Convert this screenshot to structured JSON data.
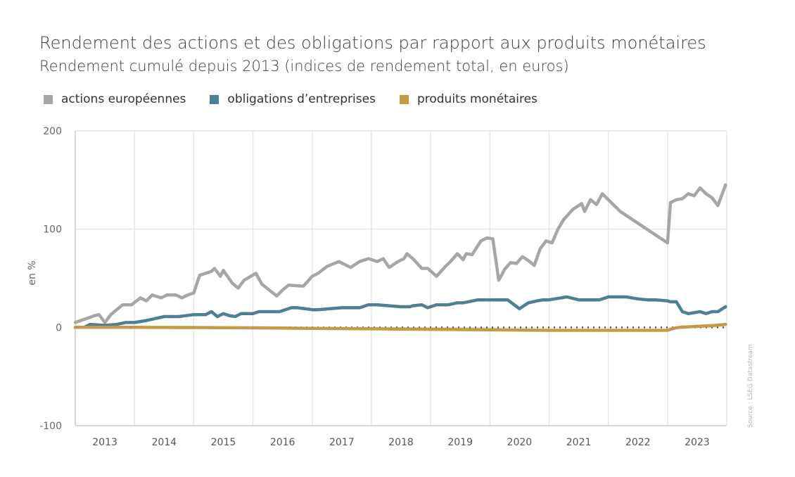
{
  "colors": {
    "actions": "#a9a5a4",
    "obligations": "#4d7f95",
    "monetaires": "#c39b48",
    "grid": "#e6e6e6",
    "text": "#3d3d3d"
  },
  "source": "Source : LSEG Datastream",
  "chart_data": {
    "type": "line",
    "title": "Rendement des actions et des obligations par rapport aux produits monétaires",
    "subtitle": "Rendement cumulé depuis 2013 (indices de rendement total, en euros)",
    "xlabel": "",
    "ylabel": "en %",
    "ylim": [
      -100,
      200
    ],
    "xlim": [
      2013,
      2024
    ],
    "yticks": [
      "200",
      "100",
      "0",
      "-100"
    ],
    "ytick_values": [
      200,
      100,
      0,
      -100
    ],
    "xticks": [
      "2013",
      "2014",
      "2015",
      "2016",
      "2017",
      "2018",
      "2019",
      "2020",
      "2021",
      "2022",
      "2023"
    ],
    "xtick_values": [
      2013,
      2014,
      2015,
      2016,
      2017,
      2018,
      2019,
      2020,
      2021,
      2022,
      2023
    ],
    "reference_line": 0,
    "grid": true,
    "legend": "top-left",
    "series": [
      {
        "name": "actions européennes",
        "key": "actions",
        "x": [
          2013.0,
          2013.33,
          2013.4,
          2013.5,
          2013.6,
          2013.8,
          2013.95,
          2014.1,
          2014.2,
          2014.3,
          2014.45,
          2014.55,
          2014.7,
          2014.8,
          2014.9,
          2015.0,
          2015.1,
          2015.2,
          2015.3,
          2015.35,
          2015.45,
          2015.5,
          2015.65,
          2015.75,
          2015.85,
          2016.05,
          2016.15,
          2016.4,
          2016.5,
          2016.6,
          2016.85,
          2017.0,
          2017.1,
          2017.25,
          2017.45,
          2017.65,
          2017.8,
          2017.95,
          2018.1,
          2018.2,
          2018.3,
          2018.45,
          2018.55,
          2018.6,
          2018.7,
          2018.85,
          2018.95,
          2019.1,
          2019.25,
          2019.35,
          2019.45,
          2019.55,
          2019.6,
          2019.7,
          2019.85,
          2019.95,
          2020.05,
          2020.15,
          2020.25,
          2020.35,
          2020.45,
          2020.55,
          2020.65,
          2020.75,
          2020.85,
          2020.95,
          2021.05,
          2021.15,
          2021.25,
          2021.4,
          2021.55,
          2021.6,
          2021.7,
          2021.8,
          2021.9,
          2022.0,
          2022.2,
          2022.6,
          2023.0,
          2023.05,
          2023.15,
          2023.25,
          2023.35,
          2023.45,
          2023.55,
          2023.65,
          2023.75,
          2023.85,
          2023.98
        ],
        "values": [
          5,
          12,
          13,
          5,
          13,
          23,
          23,
          30,
          27,
          33,
          30,
          33,
          33,
          30,
          33,
          35,
          53,
          55,
          57,
          60,
          52,
          58,
          45,
          40,
          48,
          55,
          44,
          32,
          38,
          43,
          42,
          52,
          55,
          62,
          67,
          61,
          67,
          70,
          67,
          70,
          61,
          67,
          70,
          75,
          70,
          60,
          60,
          52,
          62,
          68,
          75,
          69,
          75,
          74,
          88,
          91,
          90,
          48,
          59,
          66,
          65,
          72,
          68,
          63,
          80,
          88,
          86,
          100,
          110,
          120,
          126,
          118,
          130,
          125,
          136,
          130,
          118,
          102,
          86,
          127,
          130,
          131,
          136,
          134,
          142,
          136,
          132,
          124,
          145
        ]
      },
      {
        "name": "obligations d’entreprises",
        "key": "obligations",
        "x": [
          2013.0,
          2013.15,
          2013.25,
          2013.5,
          2013.7,
          2013.85,
          2014.0,
          2014.2,
          2014.35,
          2014.5,
          2014.75,
          2015.0,
          2015.05,
          2015.1,
          2015.2,
          2015.3,
          2015.4,
          2015.5,
          2015.6,
          2015.7,
          2015.8,
          2015.95,
          2016.0,
          2016.1,
          2016.3,
          2016.45,
          2016.65,
          2016.75,
          2017.0,
          2017.1,
          2017.3,
          2017.5,
          2017.7,
          2017.8,
          2017.95,
          2018.1,
          2018.3,
          2018.5,
          2018.65,
          2018.7,
          2018.85,
          2018.95,
          2019.1,
          2019.3,
          2019.45,
          2019.55,
          2019.8,
          2019.95,
          2020.1,
          2020.15,
          2020.3,
          2020.5,
          2020.65,
          2020.8,
          2020.9,
          2021.0,
          2021.3,
          2021.5,
          2021.6,
          2021.85,
          2022.0,
          2022.3,
          2022.5,
          2022.65,
          2022.8,
          2023.0,
          2023.05,
          2023.15,
          2023.25,
          2023.35,
          2023.45,
          2023.55,
          2023.65,
          2023.75,
          2023.85,
          2023.98
        ],
        "values": [
          0,
          0,
          3,
          2,
          3,
          5,
          5,
          7,
          9,
          11,
          11,
          13,
          13,
          13,
          13,
          16,
          11,
          14,
          12,
          11,
          14,
          14,
          14,
          16,
          16,
          16,
          20,
          20,
          18,
          18,
          19,
          20,
          20,
          20,
          23,
          23,
          22,
          21,
          21,
          22,
          23,
          20,
          23,
          23,
          25,
          25,
          28,
          28,
          28,
          28,
          28,
          19,
          25,
          27,
          28,
          28,
          31,
          28,
          28,
          28,
          31,
          31,
          29,
          28,
          28,
          27,
          26,
          26,
          16,
          14,
          15,
          16,
          14,
          16,
          16,
          21
        ]
      },
      {
        "name": "produits monétaires",
        "key": "monetaires",
        "x": [
          2013.0,
          2014.0,
          2015.0,
          2016.0,
          2017.0,
          2018.0,
          2019.0,
          2020.0,
          2021.0,
          2022.0,
          2022.5,
          2023.0,
          2023.1,
          2023.2,
          2023.5,
          2023.8,
          2023.98
        ],
        "values": [
          0,
          0,
          -0.1,
          -0.5,
          -1,
          -1.5,
          -2,
          -2.5,
          -3,
          -3,
          -3,
          -3,
          -1,
          0,
          1,
          2,
          3
        ]
      }
    ]
  }
}
